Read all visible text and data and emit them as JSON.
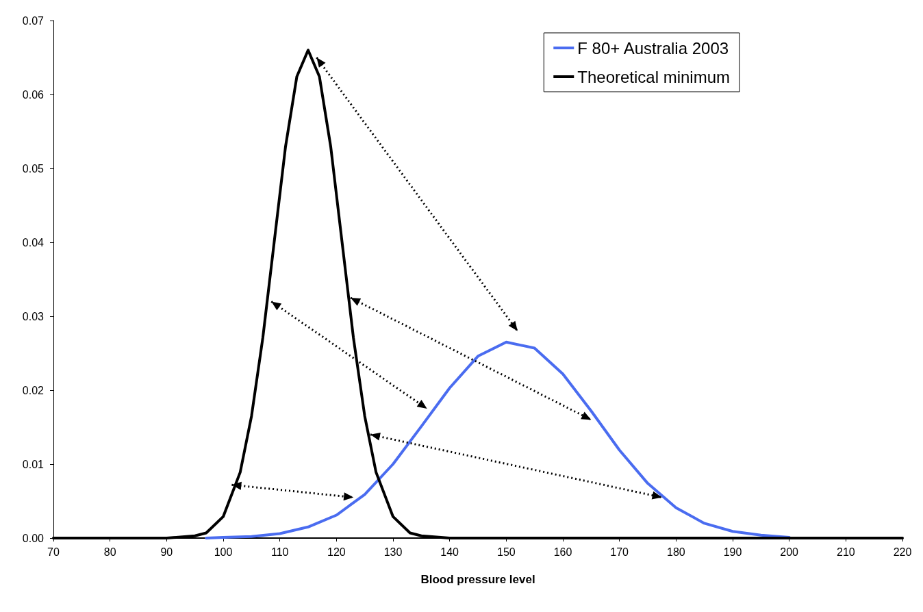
{
  "chart_data": {
    "type": "line",
    "xlabel": "Blood pressure level",
    "xlim": [
      70,
      220
    ],
    "xticks": [
      70,
      80,
      90,
      100,
      110,
      120,
      130,
      140,
      150,
      160,
      170,
      180,
      190,
      200,
      210,
      220
    ],
    "ylim": [
      0,
      0.07
    ],
    "yticks": [
      {
        "value": 0,
        "label": "0.00"
      },
      0.01,
      0.02,
      0.03,
      0.04,
      0.05,
      0.06,
      0.07
    ],
    "grid": false,
    "legend": "top right",
    "marker": "none",
    "line_style": "solid",
    "series": [
      {
        "name": "F 80+ Australia 2003",
        "color": "#4a6cf0",
        "x": [
          97,
          100,
          105,
          110,
          115,
          120,
          125,
          130,
          135,
          140,
          145,
          150,
          155,
          160,
          165,
          170,
          175,
          180,
          185,
          190,
          195,
          200
        ],
        "values": [
          0.0,
          0.0001,
          0.0002,
          0.0006,
          0.0015,
          0.0031,
          0.0059,
          0.01,
          0.0151,
          0.0203,
          0.0246,
          0.0265,
          0.0257,
          0.0222,
          0.0172,
          0.0119,
          0.0074,
          0.0041,
          0.002,
          0.0009,
          0.0004,
          0.0001
        ]
      },
      {
        "name": "Theoretical minimum",
        "color": "#000000",
        "x": [
          70,
          80,
          90,
          95,
          97,
          100,
          103,
          105,
          107,
          109,
          111,
          113,
          115,
          117,
          119,
          121,
          123,
          125,
          127,
          130,
          133,
          135,
          140,
          150,
          180,
          220
        ],
        "values": [
          0,
          0,
          0,
          0.0003,
          0.0007,
          0.0029,
          0.0089,
          0.0165,
          0.0271,
          0.04,
          0.0529,
          0.0624,
          0.066,
          0.0624,
          0.0529,
          0.04,
          0.0271,
          0.0165,
          0.0089,
          0.0029,
          0.0007,
          0.0003,
          0,
          0,
          0,
          0
        ]
      }
    ]
  }
}
